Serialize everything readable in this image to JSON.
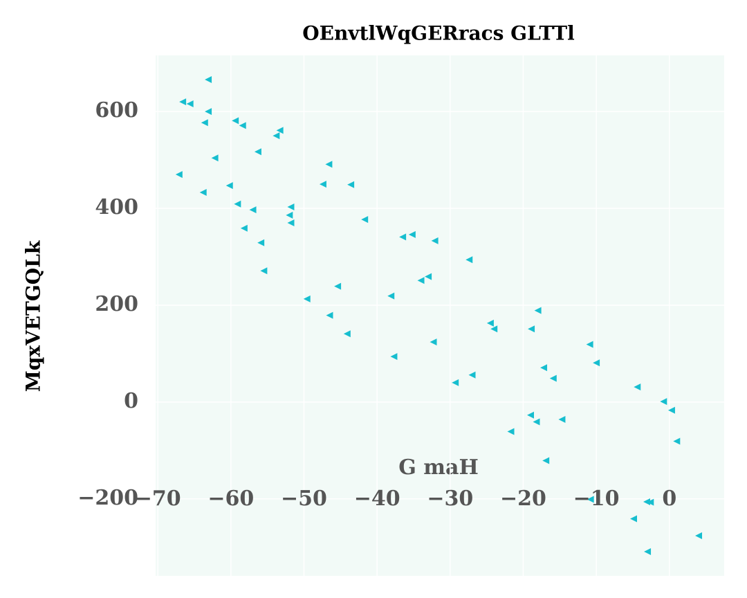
{
  "chart_data": {
    "type": "scatter",
    "title": "OEnvtlWqGERracs GLTTl",
    "x_label": "G maH",
    "y_label": "MqxVETGQLk",
    "color": "#17becf",
    "marker": "triangle-left",
    "grid": true,
    "background": "#f2faf7",
    "xlim": [
      -70.3,
      7.5
    ],
    "ylim": [
      -359,
      716
    ],
    "xticks": [
      {
        "value": -70,
        "label": "−70"
      },
      {
        "value": -60,
        "label": "−60"
      },
      {
        "value": -50,
        "label": "−50"
      },
      {
        "value": -40,
        "label": "−40"
      },
      {
        "value": -30,
        "label": "−30"
      },
      {
        "value": -20,
        "label": "−20"
      },
      {
        "value": -10,
        "label": "−10"
      },
      0
    ],
    "yticks": [
      {
        "value": -200,
        "label": "−200"
      },
      0,
      200,
      400,
      600
    ],
    "x": [
      -63.1,
      -66.6,
      -65.6,
      -63.1,
      -63.6,
      -59.4,
      -58.4,
      -53.3,
      -53.8,
      -56.3,
      -62.2,
      -46.6,
      -67.1,
      -60.2,
      -47.4,
      -43.6,
      -63.8,
      -59.1,
      -57.0,
      -51.8,
      -52.0,
      -51.8,
      -41.7,
      -58.2,
      -55.9,
      -36.5,
      -35.2,
      -32.1,
      -27.4,
      -55.5,
      -33.0,
      -34.0,
      -45.4,
      -49.6,
      -38.1,
      -46.5,
      -18.0,
      -24.5,
      -24.0,
      -18.9,
      -44.1,
      -32.3,
      -10.9,
      -10.0,
      -37.7,
      -17.2,
      -27.0,
      -15.9,
      -29.3,
      -4.4,
      -0.8,
      0.3,
      -19.0,
      -14.7,
      -18.2,
      -21.7,
      1.0,
      -16.9,
      -10.8,
      -3.1,
      -2.6,
      -4.9,
      4.0,
      -3.0
    ],
    "values": [
      666,
      620,
      616,
      600,
      577,
      581,
      571,
      561,
      550,
      517,
      504,
      491,
      470,
      447,
      450,
      449,
      433,
      409,
      397,
      403,
      386,
      370,
      377,
      359,
      329,
      341,
      346,
      333,
      294,
      271,
      259,
      251,
      239,
      213,
      219,
      179,
      189,
      163,
      151,
      151,
      141,
      124,
      119,
      81,
      94,
      71,
      56,
      49,
      40,
      31,
      1,
      -17,
      -27,
      -36,
      -41,
      -61,
      -81,
      -121,
      -201,
      -206,
      -207,
      -241,
      -276,
      -309
    ]
  }
}
